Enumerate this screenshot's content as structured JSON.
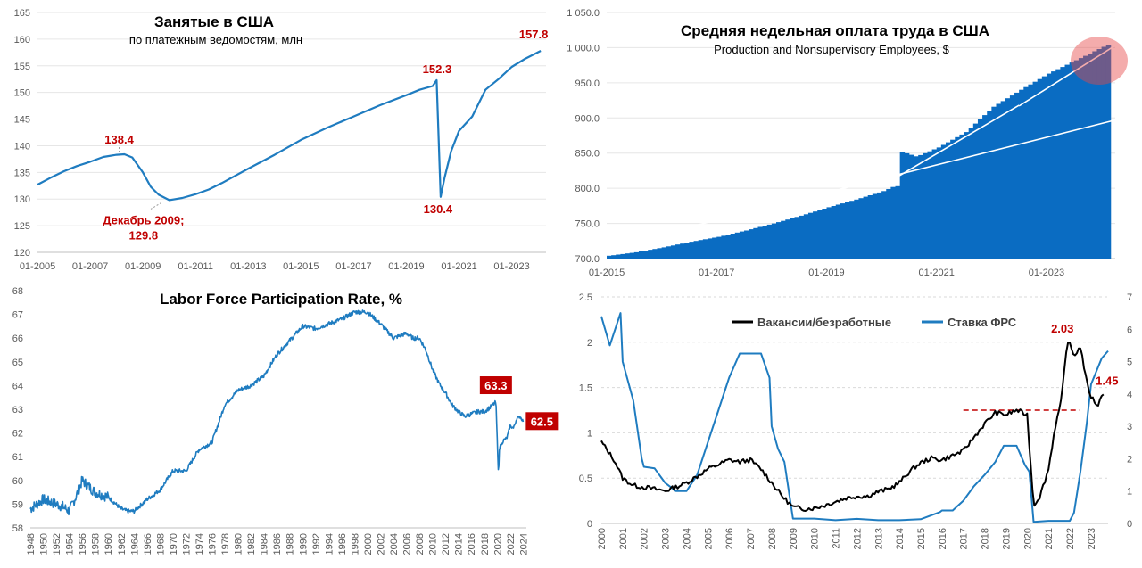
{
  "chart_data": [
    {
      "id": "employment",
      "type": "line",
      "title": "Занятые в США",
      "subtitle": "по платежным ведомостям, млн",
      "ylim": [
        120,
        165
      ],
      "yticks": [
        "120",
        "125",
        "130",
        "135",
        "140",
        "145",
        "150",
        "155",
        "160",
        "165"
      ],
      "xticks": [
        "01-2005",
        "01-2007",
        "01-2009",
        "01-2011",
        "01-2013",
        "01-2015",
        "01-2017",
        "01-2019",
        "01-2021",
        "01-2023"
      ],
      "xlim": [
        2005,
        2024.3
      ],
      "color": "#1f7cc0",
      "series": [
        {
          "x": [
            2005,
            2005.5,
            2006,
            2006.5,
            2007,
            2007.5,
            2008,
            2008.3,
            2008.6,
            2009,
            2009.3,
            2009.6,
            2010,
            2010.5,
            2011,
            2011.5,
            2012,
            2013,
            2014,
            2015,
            2016,
            2017,
            2018,
            2019,
            2019.5,
            2020.0,
            2020.15,
            2020.3,
            2020.45,
            2020.7,
            2021,
            2021.5,
            2022,
            2022.5,
            2023,
            2023.5,
            2024.1
          ],
          "values": [
            132.7,
            134,
            135.2,
            136.2,
            137,
            137.9,
            138.3,
            138.4,
            137.8,
            135,
            132.3,
            130.8,
            129.8,
            130.2,
            130.9,
            131.8,
            133,
            135.7,
            138.3,
            141.1,
            143.4,
            145.5,
            147.6,
            149.5,
            150.5,
            151.2,
            152.3,
            130.4,
            134,
            139,
            142.8,
            145.5,
            150.5,
            152.5,
            154.8,
            156.3,
            157.8
          ]
        }
      ],
      "annotations": [
        {
          "label": "138.4",
          "x": 2008.1,
          "y": 138.4
        },
        {
          "label": "Декабрь 2009;",
          "x": 2009.7,
          "y": 129.8
        },
        {
          "label": "129.8",
          "x": 2009.7,
          "y": 129.8
        },
        {
          "label": "152.3",
          "x": 2020.1,
          "y": 152.3
        },
        {
          "label": "130.4",
          "x": 2020.2,
          "y": 130.4
        },
        {
          "label": "157.8",
          "x": 2024.1,
          "y": 157.8
        }
      ]
    },
    {
      "id": "weekly-earnings",
      "type": "bar",
      "title": "Средняя недельная оплата труда в США",
      "subtitle": "Production and Nonsupervisory Employees, $",
      "ylim": [
        700,
        1050
      ],
      "yticks": [
        "700.0",
        "750.0",
        "800.0",
        "850.0",
        "900.0",
        "950.0",
        "1 000.0",
        "1 050.0"
      ],
      "xticks": [
        "01-2015",
        "01-2017",
        "01-2019",
        "01-2021",
        "01-2023"
      ],
      "xlim": [
        2015,
        2024.25
      ],
      "color": "#0a6cc2",
      "series": [
        {
          "x": [
            2015,
            2015.5,
            2016,
            2016.5,
            2017,
            2017.5,
            2018,
            2018.5,
            2019,
            2019.5,
            2020,
            2020.2,
            2020.33,
            2020.6,
            2021,
            2021.5,
            2022,
            2022.5,
            2023,
            2023.5,
            2024.1
          ],
          "values": [
            704,
            709,
            716,
            724,
            731,
            740,
            750,
            761,
            773,
            784,
            796,
            803,
            852,
            845,
            858,
            880,
            916,
            940,
            963,
            982,
            1005
          ]
        }
      ],
      "trendlines": [
        {
          "x": [
            2016,
            2024.25
          ],
          "values": [
            735,
            897
          ]
        },
        {
          "x": [
            2020.0,
            2022.5
          ],
          "values": [
            803,
            918
          ]
        },
        {
          "x": [
            2022.5,
            2024.25
          ],
          "values": [
            917,
            1003
          ]
        }
      ]
    },
    {
      "id": "lfpr",
      "type": "line",
      "title": "Labor Force Participation Rate, %",
      "ylim": [
        58,
        68
      ],
      "yticks": [
        "58",
        "59",
        "60",
        "61",
        "62",
        "63",
        "64",
        "65",
        "66",
        "67",
        "68"
      ],
      "xticks": [
        "1948",
        "1950",
        "1952",
        "1954",
        "1956",
        "1958",
        "1960",
        "1962",
        "1964",
        "1966",
        "1968",
        "1970",
        "1972",
        "1974",
        "1976",
        "1978",
        "1980",
        "1982",
        "1984",
        "1986",
        "1988",
        "1990",
        "1992",
        "1994",
        "1996",
        "1998",
        "2000",
        "2002",
        "2004",
        "2006",
        "2008",
        "2010",
        "2012",
        "2014",
        "2016",
        "2018",
        "2020",
        "2022",
        "2024"
      ],
      "xlim": [
        1948,
        2024.5
      ],
      "color": "#1f7cc0",
      "series": [
        {
          "x": [
            1948,
            1950,
            1952,
            1953,
            1954,
            1955,
            1956,
            1958,
            1960,
            1962,
            1963,
            1964,
            1966,
            1968,
            1970,
            1972,
            1974,
            1976,
            1978,
            1980,
            1982,
            1984,
            1986,
            1988,
            1990,
            1992,
            1994,
            1996,
            1998,
            2000,
            2002,
            2004,
            2006,
            2007,
            2008,
            2009,
            2010,
            2011,
            2012,
            2013,
            2014,
            2015,
            2016,
            2017,
            2018,
            2019,
            2019.8,
            2020.2,
            2020.35,
            2020.6,
            2021,
            2021.5,
            2022,
            2022.5,
            2023,
            2023.5,
            2024
          ],
          "values": [
            58.8,
            59.2,
            59.0,
            58.9,
            58.7,
            59.3,
            60.0,
            59.5,
            59.3,
            58.8,
            58.7,
            58.7,
            59.2,
            59.6,
            60.4,
            60.4,
            61.3,
            61.6,
            63.2,
            63.8,
            64.0,
            64.4,
            65.3,
            65.9,
            66.5,
            66.4,
            66.6,
            66.8,
            67.1,
            67.1,
            66.6,
            66.0,
            66.2,
            66.0,
            66.0,
            65.5,
            64.7,
            64.1,
            63.7,
            63.2,
            62.9,
            62.7,
            62.8,
            62.9,
            62.9,
            63.1,
            63.3,
            60.2,
            61.4,
            61.5,
            61.7,
            61.8,
            62.3,
            62.2,
            62.6,
            62.7,
            62.5
          ]
        }
      ],
      "annotations": [
        {
          "label": "63.3",
          "x": 2019.8,
          "y": 63.3
        },
        {
          "label": "62.5",
          "x": 2024,
          "y": 62.5
        }
      ]
    },
    {
      "id": "vacancies-fed",
      "type": "line",
      "ylim": [
        0,
        2.5
      ],
      "ylim_right": [
        0,
        7
      ],
      "yticks": [
        "0",
        "0.5",
        "1",
        "1.5",
        "2",
        "2.5"
      ],
      "yticks_right": [
        "0",
        "1",
        "2",
        "3",
        "4",
        "5",
        "6",
        "7"
      ],
      "xticks": [
        "2000",
        "2001",
        "2002",
        "2003",
        "2004",
        "2005",
        "2006",
        "2007",
        "2008",
        "2009",
        "2010",
        "2011",
        "2012",
        "2013",
        "2014",
        "2015",
        "2016",
        "2017",
        "2018",
        "2019",
        "2020",
        "2021",
        "2022",
        "2023"
      ],
      "xlim": [
        2000,
        2023.8
      ],
      "legend_position": "top",
      "series": [
        {
          "name": "Вакансии/безработные",
          "color": "#000000",
          "axis": "left",
          "x": [
            2000,
            2000.3,
            2000.6,
            2001,
            2001.5,
            2002,
            2002.5,
            2003,
            2003.5,
            2004,
            2004.5,
            2005,
            2005.5,
            2006,
            2006.5,
            2007,
            2007.5,
            2008,
            2008.5,
            2009,
            2009.5,
            2010,
            2010.5,
            2011,
            2011.5,
            2012,
            2012.5,
            2013,
            2013.5,
            2014,
            2014.5,
            2015,
            2015.5,
            2016,
            2016.5,
            2017,
            2017.5,
            2018,
            2018.5,
            2019,
            2019.5,
            2020.0,
            2020.3,
            2020.6,
            2021,
            2021.3,
            2021.6,
            2021.9,
            2022.2,
            2022.5,
            2022.8,
            2023,
            2023.3,
            2023.6
          ],
          "values": [
            0.9,
            0.8,
            0.7,
            0.5,
            0.42,
            0.4,
            0.38,
            0.36,
            0.4,
            0.45,
            0.52,
            0.6,
            0.65,
            0.7,
            0.68,
            0.7,
            0.6,
            0.45,
            0.3,
            0.18,
            0.16,
            0.17,
            0.2,
            0.24,
            0.28,
            0.3,
            0.3,
            0.35,
            0.38,
            0.45,
            0.58,
            0.67,
            0.72,
            0.7,
            0.75,
            0.8,
            0.95,
            1.1,
            1.22,
            1.2,
            1.25,
            1.2,
            0.2,
            0.3,
            0.6,
            1.05,
            1.35,
            2.03,
            1.85,
            1.95,
            1.55,
            1.4,
            1.3,
            1.45
          ]
        },
        {
          "name": "Ставка ФРС",
          "color": "#1f7cc0",
          "axis": "right",
          "x": [
            2000,
            2000.4,
            2000.9,
            2001,
            2001.5,
            2001.9,
            2002,
            2002.5,
            2003,
            2003.5,
            2004,
            2004.5,
            2005,
            2005.5,
            2006,
            2006.5,
            2007,
            2007.5,
            2007.9,
            2008,
            2008.3,
            2008.6,
            2009,
            2010,
            2011,
            2012,
            2013,
            2014,
            2015,
            2015.9,
            2016,
            2016.5,
            2017,
            2017.5,
            2018,
            2018.5,
            2018.9,
            2019,
            2019.5,
            2019.9,
            2020.1,
            2020.3,
            2021,
            2022,
            2022.2,
            2022.5,
            2022.8,
            2023,
            2023.5,
            2023.8
          ],
          "values": [
            6.4,
            5.5,
            6.5,
            5.0,
            3.8,
            2.0,
            1.75,
            1.7,
            1.25,
            1.0,
            1.0,
            1.5,
            2.5,
            3.5,
            4.5,
            5.25,
            5.25,
            5.25,
            4.5,
            3.0,
            2.3,
            1.9,
            0.15,
            0.15,
            0.1,
            0.14,
            0.1,
            0.1,
            0.13,
            0.35,
            0.4,
            0.4,
            0.7,
            1.15,
            1.5,
            1.9,
            2.4,
            2.4,
            2.4,
            1.8,
            1.6,
            0.05,
            0.08,
            0.08,
            0.33,
            1.6,
            3.1,
            4.3,
            5.1,
            5.33
          ]
        }
      ],
      "reference_line": {
        "y": 1.25,
        "x": [
          2017,
          2022.5
        ],
        "color": "#c00000"
      },
      "annotations": [
        {
          "label": "2.03",
          "x": 2021.4,
          "y": 2.03
        },
        {
          "label": "1.45",
          "x": 2023.5,
          "y": 1.45
        }
      ]
    }
  ]
}
